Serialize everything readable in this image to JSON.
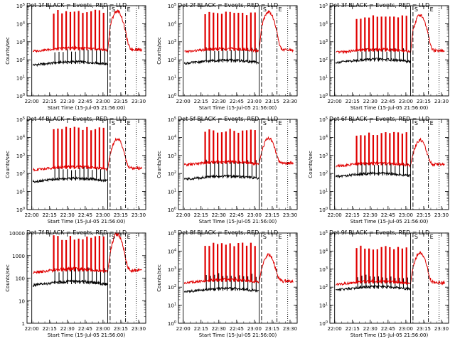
{
  "legend_text": "BLACK = Events, RED = LLD",
  "annotations": [
    "S",
    "E"
  ],
  "chart_data": [
    {
      "type": "line",
      "title": "Det 1f BLACK = Events, RED = LLD",
      "detector": "Det 1f",
      "xlabel": "Start Time (15-Jul-05 21:56:00)",
      "ylabel": "Counts/sec",
      "yscale": "log",
      "ylim": [
        1,
        100000
      ],
      "ytick_labels": [
        "10^0",
        "10^1",
        "10^2",
        "10^3",
        "10^4",
        "10^5"
      ],
      "x_ticks": [
        "22:00",
        "22:15",
        "22:30",
        "22:45",
        "23:00",
        "23:15",
        "23:30"
      ],
      "xlim_minutes": [
        0,
        100
      ],
      "vlines": [
        {
          "t": "22:00",
          "style": "solid"
        },
        {
          "t": "23:04",
          "style": "solid"
        },
        {
          "t": "23:06",
          "style": "dashed",
          "label": "S"
        },
        {
          "t": "23:19",
          "style": "dashdot",
          "label": "E"
        },
        {
          "t": "23:28",
          "style": "dotted"
        }
      ],
      "series": [
        {
          "name": "Events",
          "color": "#000000",
          "baseline": 65,
          "spike": 420,
          "peak_after_spike_gap": null
        },
        {
          "name": "LLD",
          "color": "#e00000",
          "baseline": 380,
          "spike": 60000,
          "flare_peak": 50000
        }
      ]
    },
    {
      "type": "line",
      "title": "Det 2f BLACK = Events, RED = LLD",
      "detector": "Det 2f",
      "xlabel": "Start Time (15-Jul-05 21:56:00)",
      "ylabel": "Counts/sec",
      "yscale": "log",
      "ylim": [
        1,
        100000
      ],
      "ytick_labels": [
        "10^0",
        "10^1",
        "10^2",
        "10^3",
        "10^4",
        "10^5"
      ],
      "x_ticks": [
        "22:00",
        "22:15",
        "22:30",
        "22:45",
        "23:00",
        "23:15",
        "23:30"
      ],
      "xlim_minutes": [
        0,
        100
      ],
      "vlines": [
        {
          "t": "22:00",
          "style": "solid"
        },
        {
          "t": "23:04",
          "style": "solid"
        },
        {
          "t": "23:06",
          "style": "dashed",
          "label": "S"
        },
        {
          "t": "23:19",
          "style": "dashdot",
          "label": "E"
        },
        {
          "t": "23:28",
          "style": "dotted"
        }
      ],
      "series": [
        {
          "name": "Events",
          "color": "#000000",
          "baseline": 80,
          "spike": 500
        },
        {
          "name": "LLD",
          "color": "#e00000",
          "baseline": 350,
          "spike": 50000,
          "flare_peak": 45000
        }
      ]
    },
    {
      "type": "line",
      "title": "Det 3f BLACK = Events, RED = LLD",
      "detector": "Det 3f",
      "xlabel": "Start Time (15-Jul-05 21:56:00)",
      "ylabel": "",
      "yscale": "log",
      "ylim": [
        1,
        100000
      ],
      "ytick_labels": [
        "10^0",
        "10^1",
        "10^2",
        "10^3",
        "10^4",
        "10^5"
      ],
      "x_ticks": [
        "22:00",
        "22:15",
        "22:30",
        "22:45",
        "23:00",
        "23:15",
        "23:30"
      ],
      "xlim_minutes": [
        0,
        100
      ],
      "vlines": [
        {
          "t": "22:00",
          "style": "solid"
        },
        {
          "t": "23:04",
          "style": "solid"
        },
        {
          "t": "23:06",
          "style": "dashed",
          "label": "S"
        },
        {
          "t": "23:19",
          "style": "dashdot",
          "label": "E"
        },
        {
          "t": "23:28",
          "style": "dotted"
        }
      ],
      "series": [
        {
          "name": "Events",
          "color": "#000000",
          "baseline": 90,
          "spike": 450
        },
        {
          "name": "LLD",
          "color": "#e00000",
          "baseline": 320,
          "spike": 30000,
          "flare_peak": 30000
        }
      ]
    },
    {
      "type": "line",
      "title": "Det 4f BLACK = Events, RED = LLD",
      "detector": "Det 4f",
      "xlabel": "Start Time (15-Jul-05 21:56:00)",
      "ylabel": "Counts/sec",
      "yscale": "log",
      "ylim": [
        1,
        100000
      ],
      "ytick_labels": [
        "10^0",
        "10^1",
        "10^2",
        "10^3",
        "10^4",
        "10^5"
      ],
      "x_ticks": [
        "22:00",
        "22:15",
        "22:30",
        "22:45",
        "23:00",
        "23:15",
        "23:30"
      ],
      "xlim_minutes": [
        0,
        100
      ],
      "vlines": [
        {
          "t": "22:00",
          "style": "solid"
        },
        {
          "t": "23:04",
          "style": "solid"
        },
        {
          "t": "23:06",
          "style": "dashed",
          "label": "S"
        },
        {
          "t": "23:19",
          "style": "dashdot",
          "label": "E"
        },
        {
          "t": "23:28",
          "style": "dotted"
        }
      ],
      "series": [
        {
          "name": "Events",
          "color": "#000000",
          "baseline": 45,
          "spike": 250
        },
        {
          "name": "LLD",
          "color": "#e00000",
          "baseline": 200,
          "spike": 40000,
          "flare_peak": 8000
        }
      ]
    },
    {
      "type": "line",
      "title": "Det 5f BLACK = Events, RED = LLD",
      "detector": "Det 5f",
      "xlabel": "Start Time (15-Jul-05 21:56:00)",
      "ylabel": "Counts/sec",
      "yscale": "log",
      "ylim": [
        1,
        100000
      ],
      "ytick_labels": [
        "10^0",
        "10^1",
        "10^2",
        "10^3",
        "10^4",
        "10^5"
      ],
      "x_ticks": [
        "22:00",
        "22:15",
        "22:30",
        "22:45",
        "23:00",
        "23:15",
        "23:30"
      ],
      "xlim_minutes": [
        0,
        100
      ],
      "vlines": [
        {
          "t": "22:00",
          "style": "solid"
        },
        {
          "t": "23:04",
          "style": "solid"
        },
        {
          "t": "23:06",
          "style": "dashed",
          "label": "S"
        },
        {
          "t": "23:19",
          "style": "dashdot",
          "label": "E"
        },
        {
          "t": "23:28",
          "style": "dotted"
        }
      ],
      "series": [
        {
          "name": "Events",
          "color": "#000000",
          "baseline": 60,
          "spike": 600
        },
        {
          "name": "LLD",
          "color": "#e00000",
          "baseline": 380,
          "spike": 30000,
          "flare_peak": 9000
        }
      ]
    },
    {
      "type": "line",
      "title": "Det 6f BLACK = Events, RED = LLD",
      "detector": "Det 6f",
      "xlabel": "Start Time (15-Jul-05 21:56:00)",
      "ylabel": "Counts/sec",
      "yscale": "log",
      "ylim": [
        1,
        100000
      ],
      "ytick_labels": [
        "10^0",
        "10^1",
        "10^2",
        "10^3",
        "10^4",
        "10^5"
      ],
      "x_ticks": [
        "22:00",
        "22:15",
        "22:30",
        "22:45",
        "23:00",
        "23:15",
        "23:30"
      ],
      "xlim_minutes": [
        0,
        100
      ],
      "vlines": [
        {
          "t": "22:00",
          "style": "solid"
        },
        {
          "t": "23:04",
          "style": "solid"
        },
        {
          "t": "23:06",
          "style": "dashed",
          "label": "S"
        },
        {
          "t": "23:19",
          "style": "dashdot",
          "label": "E"
        },
        {
          "t": "23:28",
          "style": "dotted"
        }
      ],
      "series": [
        {
          "name": "Events",
          "color": "#000000",
          "baseline": 85,
          "spike": 420
        },
        {
          "name": "LLD",
          "color": "#e00000",
          "baseline": 320,
          "spike": 20000,
          "flare_peak": 7000
        }
      ]
    },
    {
      "type": "line",
      "title": "Det 7f BLACK = Events, RED = LLD",
      "detector": "Det 7f",
      "xlabel": "Start Time (15-Jul-05 21:56:00)",
      "ylabel": "Counts/sec",
      "yscale": "log",
      "ylim": [
        1,
        10000
      ],
      "ytick_labels": [
        "1",
        "10",
        "100",
        "1000",
        "10000"
      ],
      "x_ticks": [
        "22:00",
        "22:15",
        "22:30",
        "22:45",
        "23:00",
        "23:15",
        "23:30"
      ],
      "xlim_minutes": [
        0,
        100
      ],
      "vlines": [
        {
          "t": "22:00",
          "style": "solid"
        },
        {
          "t": "23:04",
          "style": "solid"
        },
        {
          "t": "23:06",
          "style": "dashed",
          "label": "S"
        },
        {
          "t": "23:19",
          "style": "dashdot",
          "label": "E"
        },
        {
          "t": "23:28",
          "style": "dotted"
        }
      ],
      "series": [
        {
          "name": "Events",
          "color": "#000000",
          "baseline": 60,
          "spike": 300
        },
        {
          "name": "LLD",
          "color": "#e00000",
          "baseline": 220,
          "spike": 8000,
          "flare_peak": 9000
        }
      ]
    },
    {
      "type": "line",
      "title": "Det 8f BLACK = Events, RED = LLD",
      "detector": "Det 8f",
      "xlabel": "Start Time (15-Jul-05 21:56:00)",
      "ylabel": "Counts/sec",
      "yscale": "log",
      "ylim": [
        1,
        100000
      ],
      "ytick_labels": [
        "10^0",
        "10^1",
        "10^2",
        "10^3",
        "10^4",
        "10^5"
      ],
      "x_ticks": [
        "22:00",
        "22:15",
        "22:30",
        "22:45",
        "23:00",
        "23:15",
        "23:30"
      ],
      "xlim_minutes": [
        0,
        100
      ],
      "vlines": [
        {
          "t": "22:00",
          "style": "solid"
        },
        {
          "t": "23:04",
          "style": "solid"
        },
        {
          "t": "23:06",
          "style": "dashed",
          "label": "S"
        },
        {
          "t": "23:19",
          "style": "dashdot",
          "label": "E"
        },
        {
          "t": "23:28",
          "style": "dotted"
        }
      ],
      "series": [
        {
          "name": "Events",
          "color": "#000000",
          "baseline": 70,
          "spike": 600
        },
        {
          "name": "LLD",
          "color": "#e00000",
          "baseline": 220,
          "spike": 30000,
          "flare_peak": 6000
        }
      ]
    },
    {
      "type": "line",
      "title": "Det 9f BLACK = Events, RED = LLD",
      "detector": "Det 9f",
      "xlabel": "Start Time (15-Jul-05 21:56:00)",
      "ylabel": "",
      "yscale": "log",
      "ylim": [
        1,
        100000
      ],
      "ytick_labels": [
        "10^0",
        "10^1",
        "10^2",
        "10^3",
        "10^4",
        "10^5"
      ],
      "x_ticks": [
        "22:00",
        "22:15",
        "22:30",
        "22:45",
        "23:00",
        "23:15",
        "23:30"
      ],
      "xlim_minutes": [
        0,
        100
      ],
      "vlines": [
        {
          "t": "22:00",
          "style": "solid"
        },
        {
          "t": "23:04",
          "style": "solid"
        },
        {
          "t": "23:06",
          "style": "dashed",
          "label": "S"
        },
        {
          "t": "23:19",
          "style": "dashdot",
          "label": "E"
        },
        {
          "t": "23:28",
          "style": "dotted"
        }
      ],
      "series": [
        {
          "name": "Events",
          "color": "#000000",
          "baseline": 90,
          "spike": 500
        },
        {
          "name": "LLD",
          "color": "#e00000",
          "baseline": 180,
          "spike": 20000,
          "flare_peak": 8000
        }
      ]
    }
  ]
}
